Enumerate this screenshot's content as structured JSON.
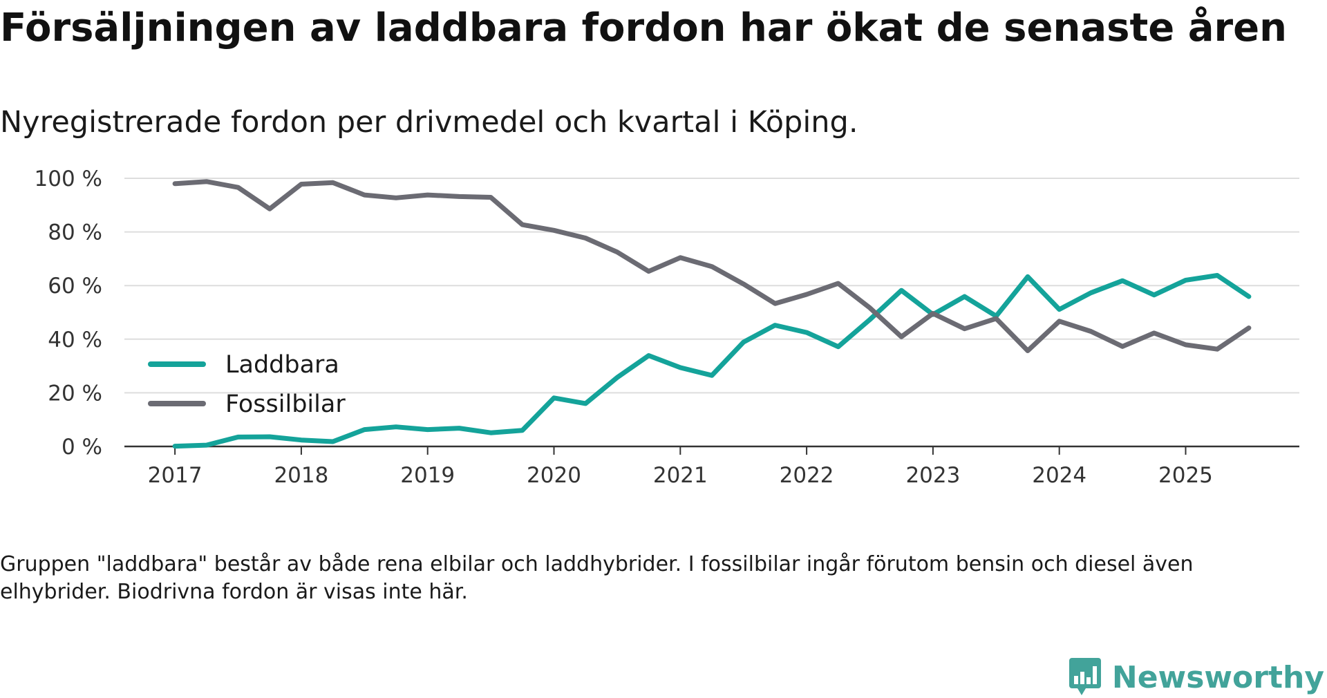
{
  "title": "Försäljningen av laddbara fordon har ökat de senaste åren",
  "subtitle": "Nyregistrerade fordon per drivmedel och kvartal i Köping.",
  "footnote": "Gruppen \"laddbara\" består av både rena elbilar och laddhybrider. I fossilbilar ingår förutom bensin och diesel även elhybrider. Biodrivna fordon är visas inte här.",
  "brand": "Newsworthy",
  "colors": {
    "laddbara": "#14a39a",
    "fossil": "#6b6b73",
    "grid": "#dddddd",
    "axis": "#333333",
    "brand": "#42a39a"
  },
  "chart_data": {
    "type": "line",
    "title": "Försäljningen av laddbara fordon har ökat de senaste åren",
    "xlabel": "",
    "ylabel": "",
    "x_start": 2017,
    "x_step": 0.25,
    "xlim": [
      2016.6,
      2025.9
    ],
    "ylim": [
      0,
      100
    ],
    "yticks": [
      0,
      20,
      40,
      60,
      80,
      100
    ],
    "ytick_labels": [
      "0 %",
      "20 %",
      "40 %",
      "60 %",
      "80 %",
      "100 %"
    ],
    "xticks": [
      2017,
      2018,
      2019,
      2020,
      2021,
      2022,
      2023,
      2024,
      2025
    ],
    "xtick_labels": [
      "2017",
      "2018",
      "2019",
      "2020",
      "2021",
      "2022",
      "2023",
      "2024",
      "2025"
    ],
    "legend_position": "left-middle",
    "series": [
      {
        "name": "Laddbara",
        "color": "#14a39a",
        "values": [
          0.1,
          0.5,
          3.5,
          3.6,
          2.4,
          1.8,
          6.3,
          7.3,
          6.3,
          6.8,
          5.1,
          6.0,
          18.1,
          16.0,
          25.7,
          33.9,
          29.4,
          26.5,
          38.9,
          45.2,
          42.5,
          37.2,
          47.3,
          58.2,
          49.2,
          55.9,
          48.6,
          63.3,
          51.1,
          57.3,
          61.8,
          56.5,
          62.0,
          63.8,
          55.9
        ]
      },
      {
        "name": "Fossilbilar",
        "color": "#6b6b73",
        "values": [
          98.0,
          98.8,
          96.6,
          88.6,
          97.8,
          98.4,
          93.8,
          92.7,
          93.8,
          93.2,
          92.9,
          82.7,
          80.6,
          77.7,
          72.5,
          65.3,
          70.4,
          67.1,
          60.6,
          53.3,
          56.7,
          60.8,
          51.7,
          40.9,
          49.6,
          43.9,
          47.7,
          35.7,
          46.7,
          42.9,
          37.3,
          42.3,
          37.9,
          36.3,
          44.2
        ]
      }
    ]
  }
}
